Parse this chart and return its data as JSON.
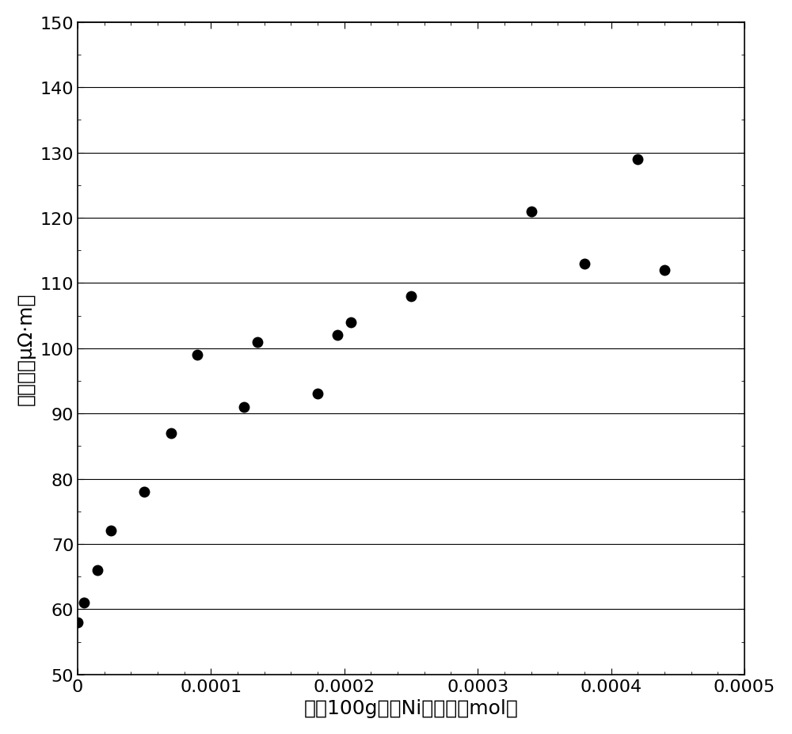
{
  "x": [
    0.0,
    5e-06,
    1.5e-05,
    2.5e-05,
    5e-05,
    7e-05,
    9e-05,
    0.000125,
    0.000135,
    0.00018,
    0.000195,
    0.000205,
    0.00025,
    0.00034,
    0.00038,
    0.00042,
    0.00044
  ],
  "y": [
    58,
    61,
    66,
    72,
    78,
    87,
    99,
    91,
    101,
    93,
    102,
    104,
    108,
    121,
    113,
    129,
    112
  ],
  "xlabel": "鐵粉100g中的Ni摩尔数（mol）",
  "ylabel": "電阻率（μΩ·m）",
  "xlim": [
    0,
    0.0005
  ],
  "ylim": [
    50,
    150
  ],
  "xticks": [
    0,
    0.0001,
    0.0002,
    0.0003,
    0.0004,
    0.0005
  ],
  "yticks": [
    50,
    60,
    70,
    80,
    90,
    100,
    110,
    120,
    130,
    140,
    150
  ],
  "marker_size": 100,
  "marker_color": "#000000",
  "bg_color": "#ffffff",
  "xlabel_fontsize": 18,
  "ylabel_fontsize": 18,
  "tick_fontsize": 16
}
